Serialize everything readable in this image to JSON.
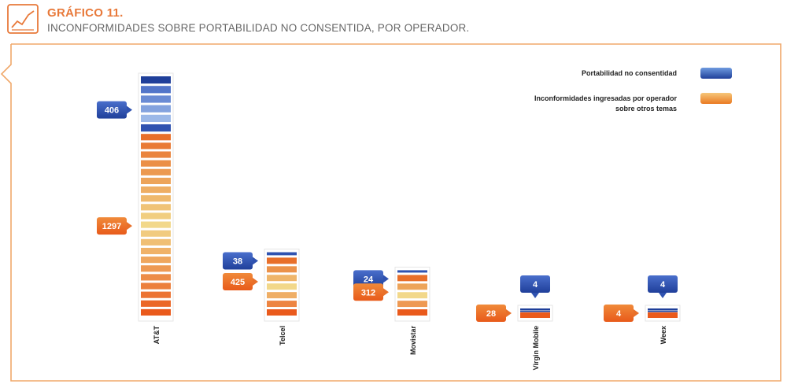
{
  "header": {
    "chart_number": "GRÁFICO 11.",
    "title": "INCONFORMIDADES SOBRE PORTABILIDAD NO CONSENTIDA, POR OPERADOR.",
    "icon": "line-chart-icon"
  },
  "colors": {
    "accent": "#e8793a",
    "blue_dark": "#1f3f9a",
    "blue_light": "#a8c4ee",
    "orange_dark": "#ea5a1c",
    "orange_light": "#f2d88a"
  },
  "legend": {
    "items": [
      {
        "label": "Portabilidad no consentidad",
        "swatch": "blue"
      },
      {
        "label": "Inconformidades ingresadas por operador sobre otros temas",
        "swatch": "orange"
      }
    ]
  },
  "chart_data": {
    "type": "bar",
    "stacked": true,
    "categories": [
      "AT&T",
      "Telcel",
      "Movistar",
      "Virgin Mobile",
      "Weex"
    ],
    "series": [
      {
        "name": "Portabilidad no consentidad",
        "values": [
          406,
          38,
          24,
          4,
          4
        ]
      },
      {
        "name": "Inconformidades ingresadas por operador sobre otros temas",
        "values": [
          1297,
          425,
          312,
          28,
          4
        ]
      }
    ],
    "title": "INCONFORMIDADES SOBRE PORTABILIDAD NO CONSENTIDA, POR OPERADOR.",
    "xlabel": "",
    "ylabel": "",
    "legend_position": "top-right",
    "grid": false
  }
}
